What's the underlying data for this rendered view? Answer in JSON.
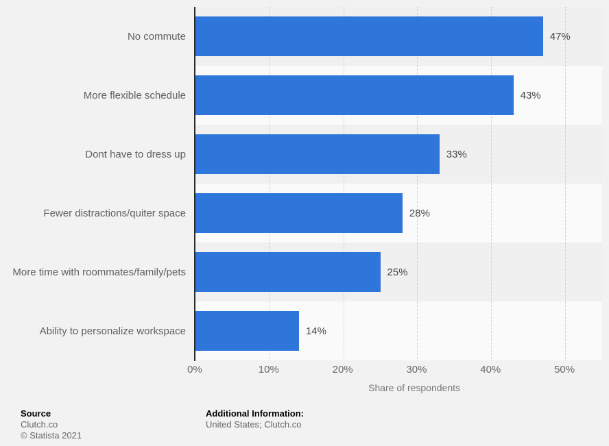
{
  "chart_data": {
    "type": "bar",
    "orientation": "horizontal",
    "categories": [
      "No commute",
      "More flexible schedule",
      "Dont have to dress up",
      "Fewer distractions/quiter space",
      "More time with roommates/family/pets",
      "Ability to personalize workspace"
    ],
    "values": [
      47,
      43,
      33,
      28,
      25,
      14
    ],
    "value_labels": [
      "47%",
      "43%",
      "33%",
      "28%",
      "25%",
      "14%"
    ],
    "x_ticks": [
      0,
      10,
      20,
      30,
      40,
      50
    ],
    "x_tick_labels": [
      "0%",
      "10%",
      "20%",
      "30%",
      "40%",
      "50%"
    ],
    "xlabel": "Share of respondents",
    "xlim": [
      0,
      55
    ],
    "grid": "vertical-dotted",
    "legend": "none"
  },
  "colors": {
    "background": "#f2f2f2",
    "band_dark": "#f0f0f0",
    "band_light": "#fafafa",
    "bar": "#2e76da",
    "axis": "#2b2b2b",
    "gridline": "#c9c9c9"
  },
  "footer": {
    "source_heading": "Source",
    "source_name": "Clutch.co",
    "copyright": "© Statista 2021",
    "additional_heading": "Additional Information:",
    "additional_value": "United States; Clutch.co"
  }
}
